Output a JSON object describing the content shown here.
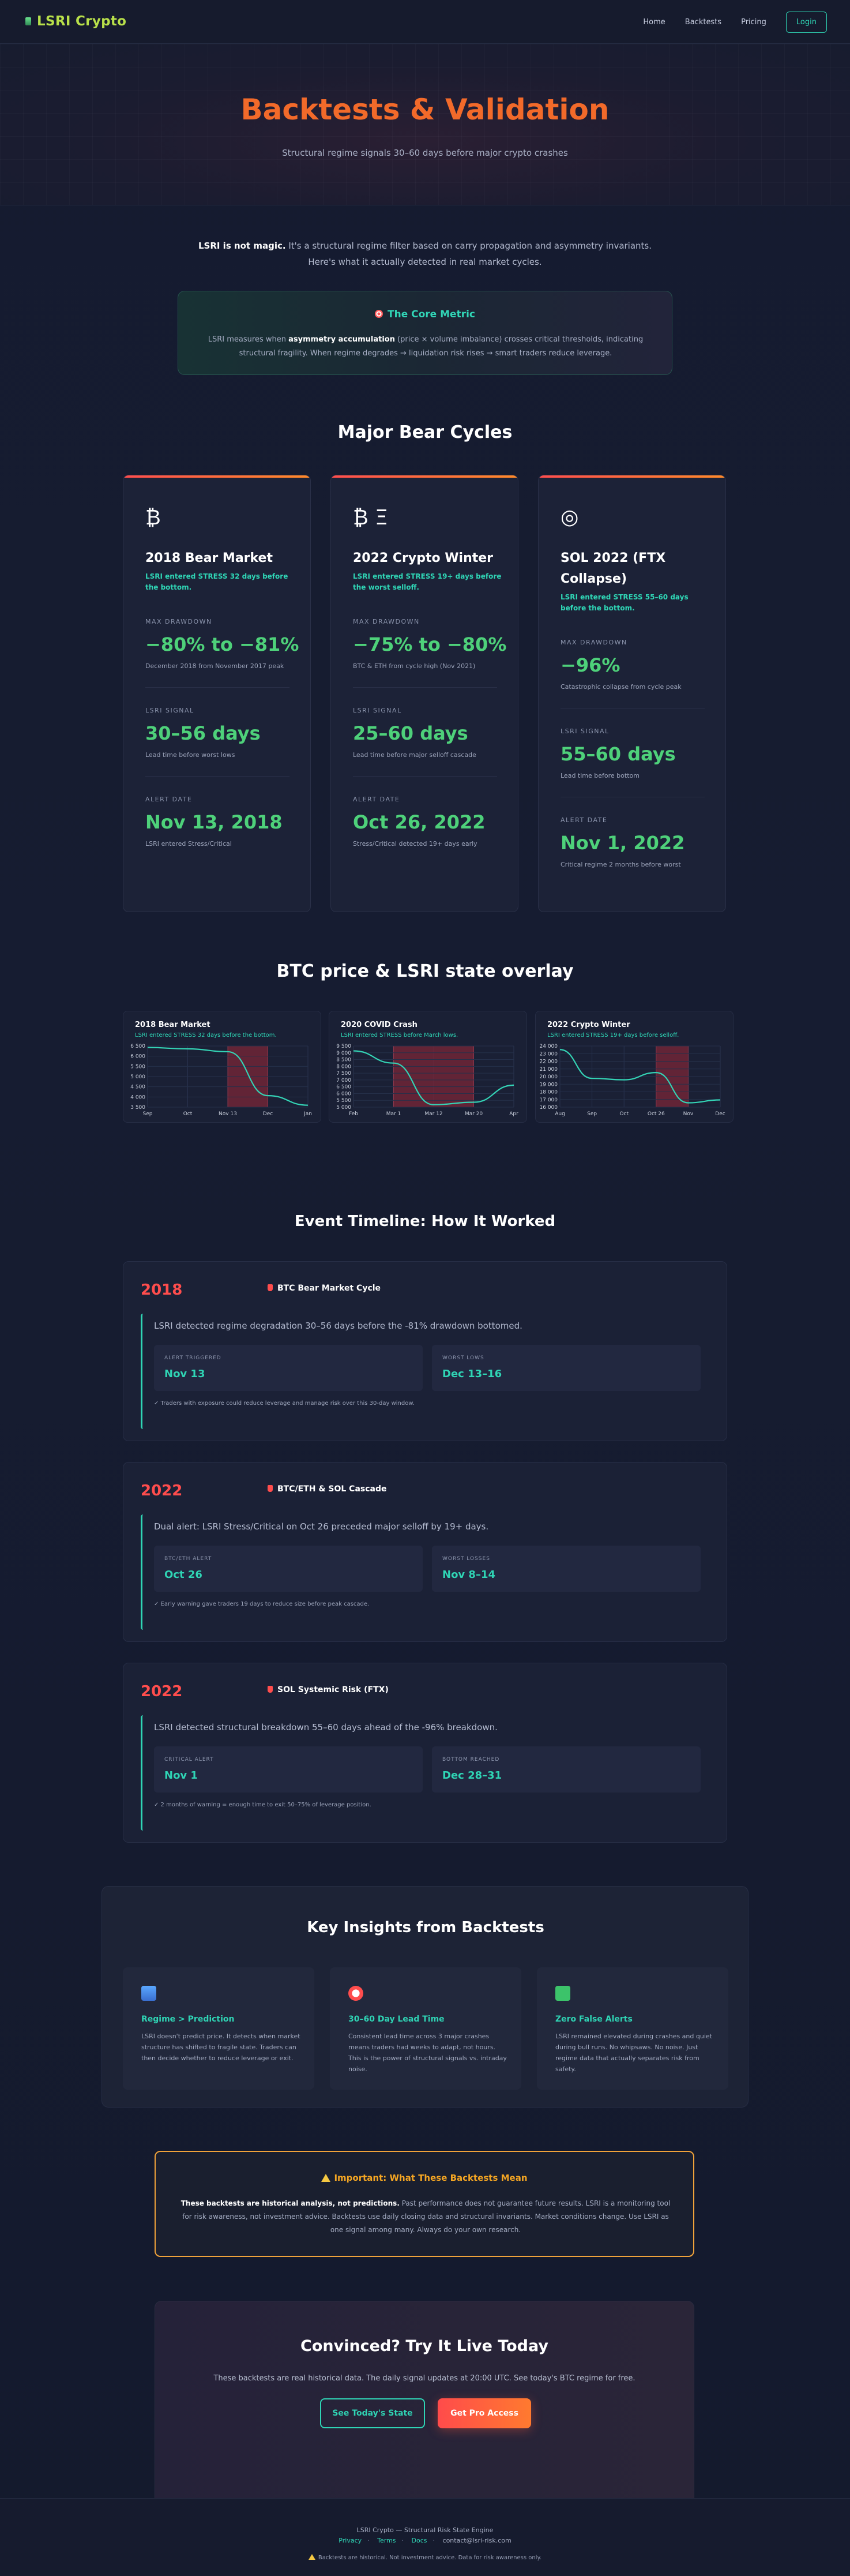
{
  "nav": {
    "brand": "LSRI Crypto",
    "links": [
      "Home",
      "Backtests",
      "Pricing"
    ],
    "login": "Login"
  },
  "hero": {
    "title": "Backtests & Validation",
    "subtitle": "Structural regime signals 30–60 days before major crypto crashes"
  },
  "intro": {
    "lead": "LSRI is not magic.",
    "text": " It's a structural regime filter based on carry propagation and asymmetry invariants. Here's what it actually detected in real market cycles."
  },
  "core_metric": {
    "title": "The Core Metric",
    "text_1": "LSRI measures when ",
    "text_bold": "asymmetry accumulation",
    "text_2": " (price × volume imbalance) crosses critical thresholds, indicating structural fragility. When regime degrades → liquidation risk rises → smart traders reduce leverage."
  },
  "bear_section_title": "Major Bear Cycles",
  "bear_cards": [
    {
      "icon": "₿",
      "name": "2018 Bear Market",
      "note": "LSRI entered STRESS 32 days before the bottom.",
      "drawdown_label": "MAX DRAWDOWN",
      "drawdown": "−80% to −81%",
      "drawdown_note": "December 2018 from November 2017 peak",
      "signal_label": "LSRI SIGNAL",
      "signal": "30–56 days",
      "signal_note": "Lead time before worst lows",
      "alert_label": "ALERT DATE",
      "alert": "Nov 13, 2018",
      "alert_note": "LSRI entered Stress/Critical"
    },
    {
      "icon": "₿ Ξ",
      "name": "2022 Crypto Winter",
      "note": "LSRI entered STRESS 19+ days before the worst selloff.",
      "drawdown_label": "MAX DRAWDOWN",
      "drawdown": "−75% to −80%",
      "drawdown_note": "BTC & ETH from cycle high (Nov 2021)",
      "signal_label": "LSRI SIGNAL",
      "signal": "25–60 days",
      "signal_note": "Lead time before major selloff cascade",
      "alert_label": "ALERT DATE",
      "alert": "Oct 26, 2022",
      "alert_note": "Stress/Critical detected 19+ days early"
    },
    {
      "icon": "◎",
      "name": "SOL 2022 (FTX Collapse)",
      "note": "LSRI entered STRESS 55–60 days before the bottom.",
      "drawdown_label": "MAX DRAWDOWN",
      "drawdown": "−96%",
      "drawdown_note": "Catastrophic collapse from cycle peak",
      "signal_label": "LSRI SIGNAL",
      "signal": "55–60 days",
      "signal_note": "Lead time before bottom",
      "alert_label": "ALERT DATE",
      "alert": "Nov 1, 2022",
      "alert_note": "Critical regime 2 months before worst"
    }
  ],
  "overlay_title": "BTC price & LSRI state overlay",
  "chart_data": [
    {
      "type": "line",
      "title": "2018 Bear Market",
      "subtitle": "LSRI entered STRESS 32 days before the bottom.",
      "x": [
        "Sep",
        "Oct",
        "Nov 13",
        "Dec",
        "Jan"
      ],
      "series": [
        {
          "values": [
            6520,
            6450,
            6300,
            4000,
            3500
          ]
        }
      ],
      "ylim": [
        3400,
        6600
      ],
      "yticks": [
        "6 500",
        "6 000",
        "5 500",
        "5 000",
        "4 500",
        "4 000",
        "3 500"
      ],
      "stress_zone": [
        "Nov 13",
        "Dec"
      ],
      "colors": {
        "line": "#34d3b5",
        "stress": "#7a2637"
      }
    },
    {
      "type": "line",
      "title": "2020 COVID Crash",
      "subtitle": "LSRI entered STRESS before March lows.",
      "x": [
        "Feb",
        "Mar 1",
        "Mar 12",
        "Mar 20",
        "Apr"
      ],
      "series": [
        {
          "values": [
            9600,
            8600,
            5200,
            5400,
            6800
          ]
        }
      ],
      "ylim": [
        5000,
        10000
      ],
      "yticks": [
        "9 500",
        "9 000",
        "8 500",
        "8 000",
        "7 500",
        "7 000",
        "6 500",
        "6 000",
        "5 500",
        "5 000"
      ],
      "stress_zone": [
        "Mar 1",
        "Mar 20"
      ],
      "colors": {
        "line": "#34d3b5",
        "stress": "#7a2637"
      }
    },
    {
      "type": "line",
      "title": "2022 Crypto Winter",
      "subtitle": "LSRI entered STRESS 19+ days before selloff.",
      "x": [
        "Aug",
        "Sep",
        "Oct",
        "Oct 26",
        "Nov",
        "Dec"
      ],
      "series": [
        {
          "values": [
            24000,
            20000,
            19800,
            20800,
            16600,
            17000
          ]
        }
      ],
      "ylim": [
        16000,
        24500
      ],
      "yticks": [
        "24 000",
        "23 000",
        "22 000",
        "21 000",
        "20 000",
        "19 000",
        "18 000",
        "17 000",
        "16 000"
      ],
      "stress_zone": [
        "Oct 26",
        "Nov"
      ],
      "colors": {
        "line": "#34d3b5",
        "stress": "#7a2637"
      }
    }
  ],
  "timeline_title": "Event Timeline: How It Worked",
  "timeline": [
    {
      "year": "2018",
      "event": "BTC Bear Market Cycle",
      "desc": "LSRI detected regime degradation 30–56 days before the -81% drawdown bottomed.",
      "box1_label": "ALERT TRIGGERED",
      "box1_value": "Nov 13",
      "box2_label": "WORST LOWS",
      "box2_value": "Dec 13–16",
      "foot": "✓ Traders with exposure could reduce leverage and manage risk over this 30-day window."
    },
    {
      "year": "2022",
      "event": "BTC/ETH & SOL Cascade",
      "desc": "Dual alert: LSRI Stress/Critical on Oct 26 preceded major selloff by 19+ days.",
      "box1_label": "BTC/ETH ALERT",
      "box1_value": "Oct 26",
      "box2_label": "WORST LOSSES",
      "box2_value": "Nov 8–14",
      "foot": "✓ Early warning gave traders 19 days to reduce size before peak cascade."
    },
    {
      "year": "2022",
      "event": "SOL Systemic Risk (FTX)",
      "desc": "LSRI detected structural breakdown 55–60 days ahead of the -96% breakdown.",
      "box1_label": "CRITICAL ALERT",
      "box1_value": "Nov 1",
      "box2_label": "BOTTOM REACHED",
      "box2_value": "Dec 28–31",
      "foot": "✓ 2 months of warning = enough time to exit 50–75% of leverage position."
    }
  ],
  "insights": {
    "title": "Key Insights from Backtests",
    "cards": [
      {
        "icon": "bar-chart-icon",
        "title": "Regime > Prediction",
        "text": "LSRI doesn't predict price. It detects when market structure has shifted to fragile state. Traders can then decide whether to reduce leverage or exit."
      },
      {
        "icon": "alarm-clock-icon",
        "title": "30–60 Day Lead Time",
        "text": "Consistent lead time across 3 major crashes means traders had weeks to adapt, not hours. This is the power of structural signals vs. intraday noise."
      },
      {
        "icon": "check-mark-icon",
        "title": "Zero False Alerts",
        "text": "LSRI remained elevated during crashes and quiet during bull runs. No whipsaws. No noise. Just regime data that actually separates risk from safety."
      }
    ]
  },
  "warning": {
    "title": "Important: What These Backtests Mean",
    "lead": "These backtests are historical analysis, not predictions.",
    "text": " Past performance does not guarantee future results. LSRI is a monitoring tool for risk awareness, not investment advice. Backtests use daily closing data and structural invariants. Market conditions change. Use LSRI as one signal among many. Always do your own research."
  },
  "cta": {
    "title": "Convinced? Try It Live Today",
    "text": "These backtests are real historical data. The daily signal updates at 20:00 UTC. See today's BTC regime for free.",
    "btn1": "See Today's State",
    "btn2": "Get Pro Access"
  },
  "footer": {
    "line1": "LSRI Crypto — Structural Risk State Engine",
    "privacy": "Privacy",
    "terms": "Terms",
    "docs": "Docs",
    "contact": "contact@lsri-risk.com",
    "disclaimer": "Backtests are historical. Not investment advice. Data for risk awareness only."
  }
}
